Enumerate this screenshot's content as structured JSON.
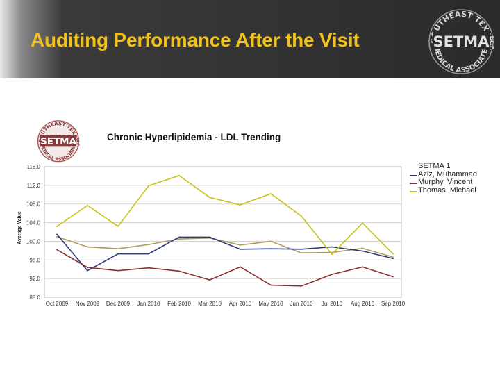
{
  "header": {
    "title": "Auditing Performance After the Visit"
  },
  "logo": {
    "top_arc_text": "SOUTHEAST TEXAS",
    "center_text": "SETMA",
    "bottom_arc_text": "MEDICAL ASSOCIATES",
    "side_text": "L.L.P."
  },
  "small_logo": {
    "top_arc_text": "SOUTHEAST TEXAS",
    "center_text": "SETMA",
    "bottom_arc_text": "MEDICAL ASSOCIATES",
    "side_text": "L.L.P."
  },
  "colors": {
    "header_bg": "#2b2b2b",
    "title": "#f1c21b",
    "setma1": "#b09a60",
    "aziz": "#2e3a78",
    "murphy": "#8c2f2f",
    "thomas": "#c9c219"
  },
  "chart_data": {
    "type": "line",
    "title": "Chronic Hyperlipidemia - LDL Trending",
    "xlabel": "",
    "ylabel": "Average Value",
    "categories": [
      "Oct 2009",
      "Nov 2009",
      "Dec 2009",
      "Jan 2010",
      "Feb 2010",
      "Mar 2010",
      "Apr 2010",
      "May 2010",
      "Jun 2010",
      "Jul 2010",
      "Aug 2010",
      "Sep 2010"
    ],
    "y_ticks": [
      "116.0",
      "112.0",
      "108.0",
      "104.0",
      "100.0",
      "96.0",
      "92.0",
      "88.0"
    ],
    "ylim": [
      88,
      116
    ],
    "grid": true,
    "legend_position": "right",
    "legend_header": "SETMA 1",
    "series": [
      {
        "name": "SETMA 1",
        "color": "#b09a60",
        "values": [
          101.0,
          98.8,
          98.4,
          99.3,
          100.5,
          100.7,
          99.2,
          100.0,
          97.5,
          97.6,
          98.5,
          96.6
        ]
      },
      {
        "name": "Aziz, Muhammad",
        "color": "#2e3a78",
        "values": [
          101.5,
          93.7,
          97.3,
          97.3,
          100.9,
          100.9,
          98.3,
          98.4,
          98.3,
          98.8,
          97.9,
          96.3
        ]
      },
      {
        "name": "Murphy, Vincent",
        "color": "#8c2f2f",
        "values": [
          98.2,
          94.4,
          93.7,
          94.3,
          93.6,
          91.7,
          94.5,
          90.6,
          90.4,
          92.9,
          94.5,
          92.4
        ]
      },
      {
        "name": "Thomas, Michael",
        "color": "#c9c219",
        "values": [
          103.2,
          107.7,
          103.2,
          111.9,
          114.1,
          109.4,
          107.8,
          110.2,
          105.4,
          97.2,
          103.9,
          97.3
        ]
      }
    ]
  }
}
